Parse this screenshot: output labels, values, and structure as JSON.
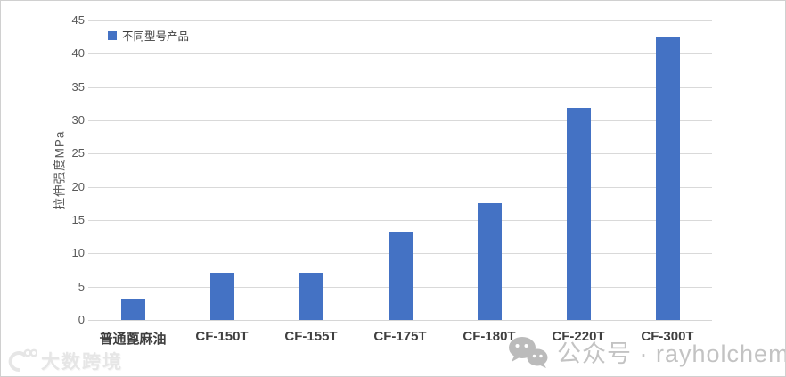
{
  "chart_data": {
    "type": "bar",
    "categories": [
      "普通蓖麻油",
      "CF-150T",
      "CF-155T",
      "CF-175T",
      "CF-180T",
      "CF-220T",
      "CF-300T"
    ],
    "values": [
      3.2,
      7.1,
      7.1,
      13.3,
      17.5,
      31.9,
      42.6
    ],
    "title": "",
    "xlabel": "",
    "ylabel": "拉伸强度MPa",
    "ylim": [
      0,
      45
    ],
    "ytick_step": 5,
    "ytick_labels": [
      "45",
      "40",
      "35",
      "30",
      "25",
      "20",
      "15",
      "10",
      "5",
      "0"
    ],
    "grid": true,
    "legend_entries": [
      "不同型号产品"
    ],
    "legend_position": "top-left",
    "bar_color": "#4472C4"
  },
  "legend": {
    "label": "不同型号产品"
  },
  "axis": {
    "y_title": "拉伸强度MPa"
  },
  "watermarks": {
    "bottom_left_text": "大数跨境",
    "bottom_left_logo": "dashu-kuajing-logo-icon",
    "bottom_right_text": "公众号 · rayholchem",
    "bottom_right_icon": "wechat-icon"
  },
  "colors": {
    "bar": "#4472C4",
    "gridline": "#D9D9D9",
    "y_tick_label": "#595959",
    "x_label": "#3F3F3F",
    "legend_text": "#404040",
    "watermark_left": "#E6E6E6",
    "watermark_right": "#B5B5B5"
  }
}
